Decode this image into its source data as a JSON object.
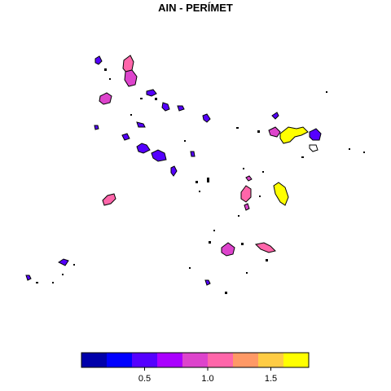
{
  "title": "AIN - PERÍMET",
  "legend": {
    "colors": [
      "#0000AA",
      "#0000FF",
      "#5500FF",
      "#AA00FF",
      "#DD44CC",
      "#FF66AA",
      "#FF9966",
      "#FFCC44",
      "#FFFF00"
    ],
    "breaks": [
      0,
      0.2,
      0.4,
      0.6,
      0.8,
      1.0,
      1.2,
      1.4,
      1.6,
      1.8
    ],
    "tick_labels": [
      "0.5",
      "1.0",
      "1.5"
    ],
    "tick_values": [
      0.5,
      1.0,
      1.5
    ]
  },
  "chart_data": {
    "type": "choropleth-map",
    "title": "AIN - PERÍMET",
    "value_range": [
      0,
      1.8
    ],
    "legend_position": "bottom"
  }
}
